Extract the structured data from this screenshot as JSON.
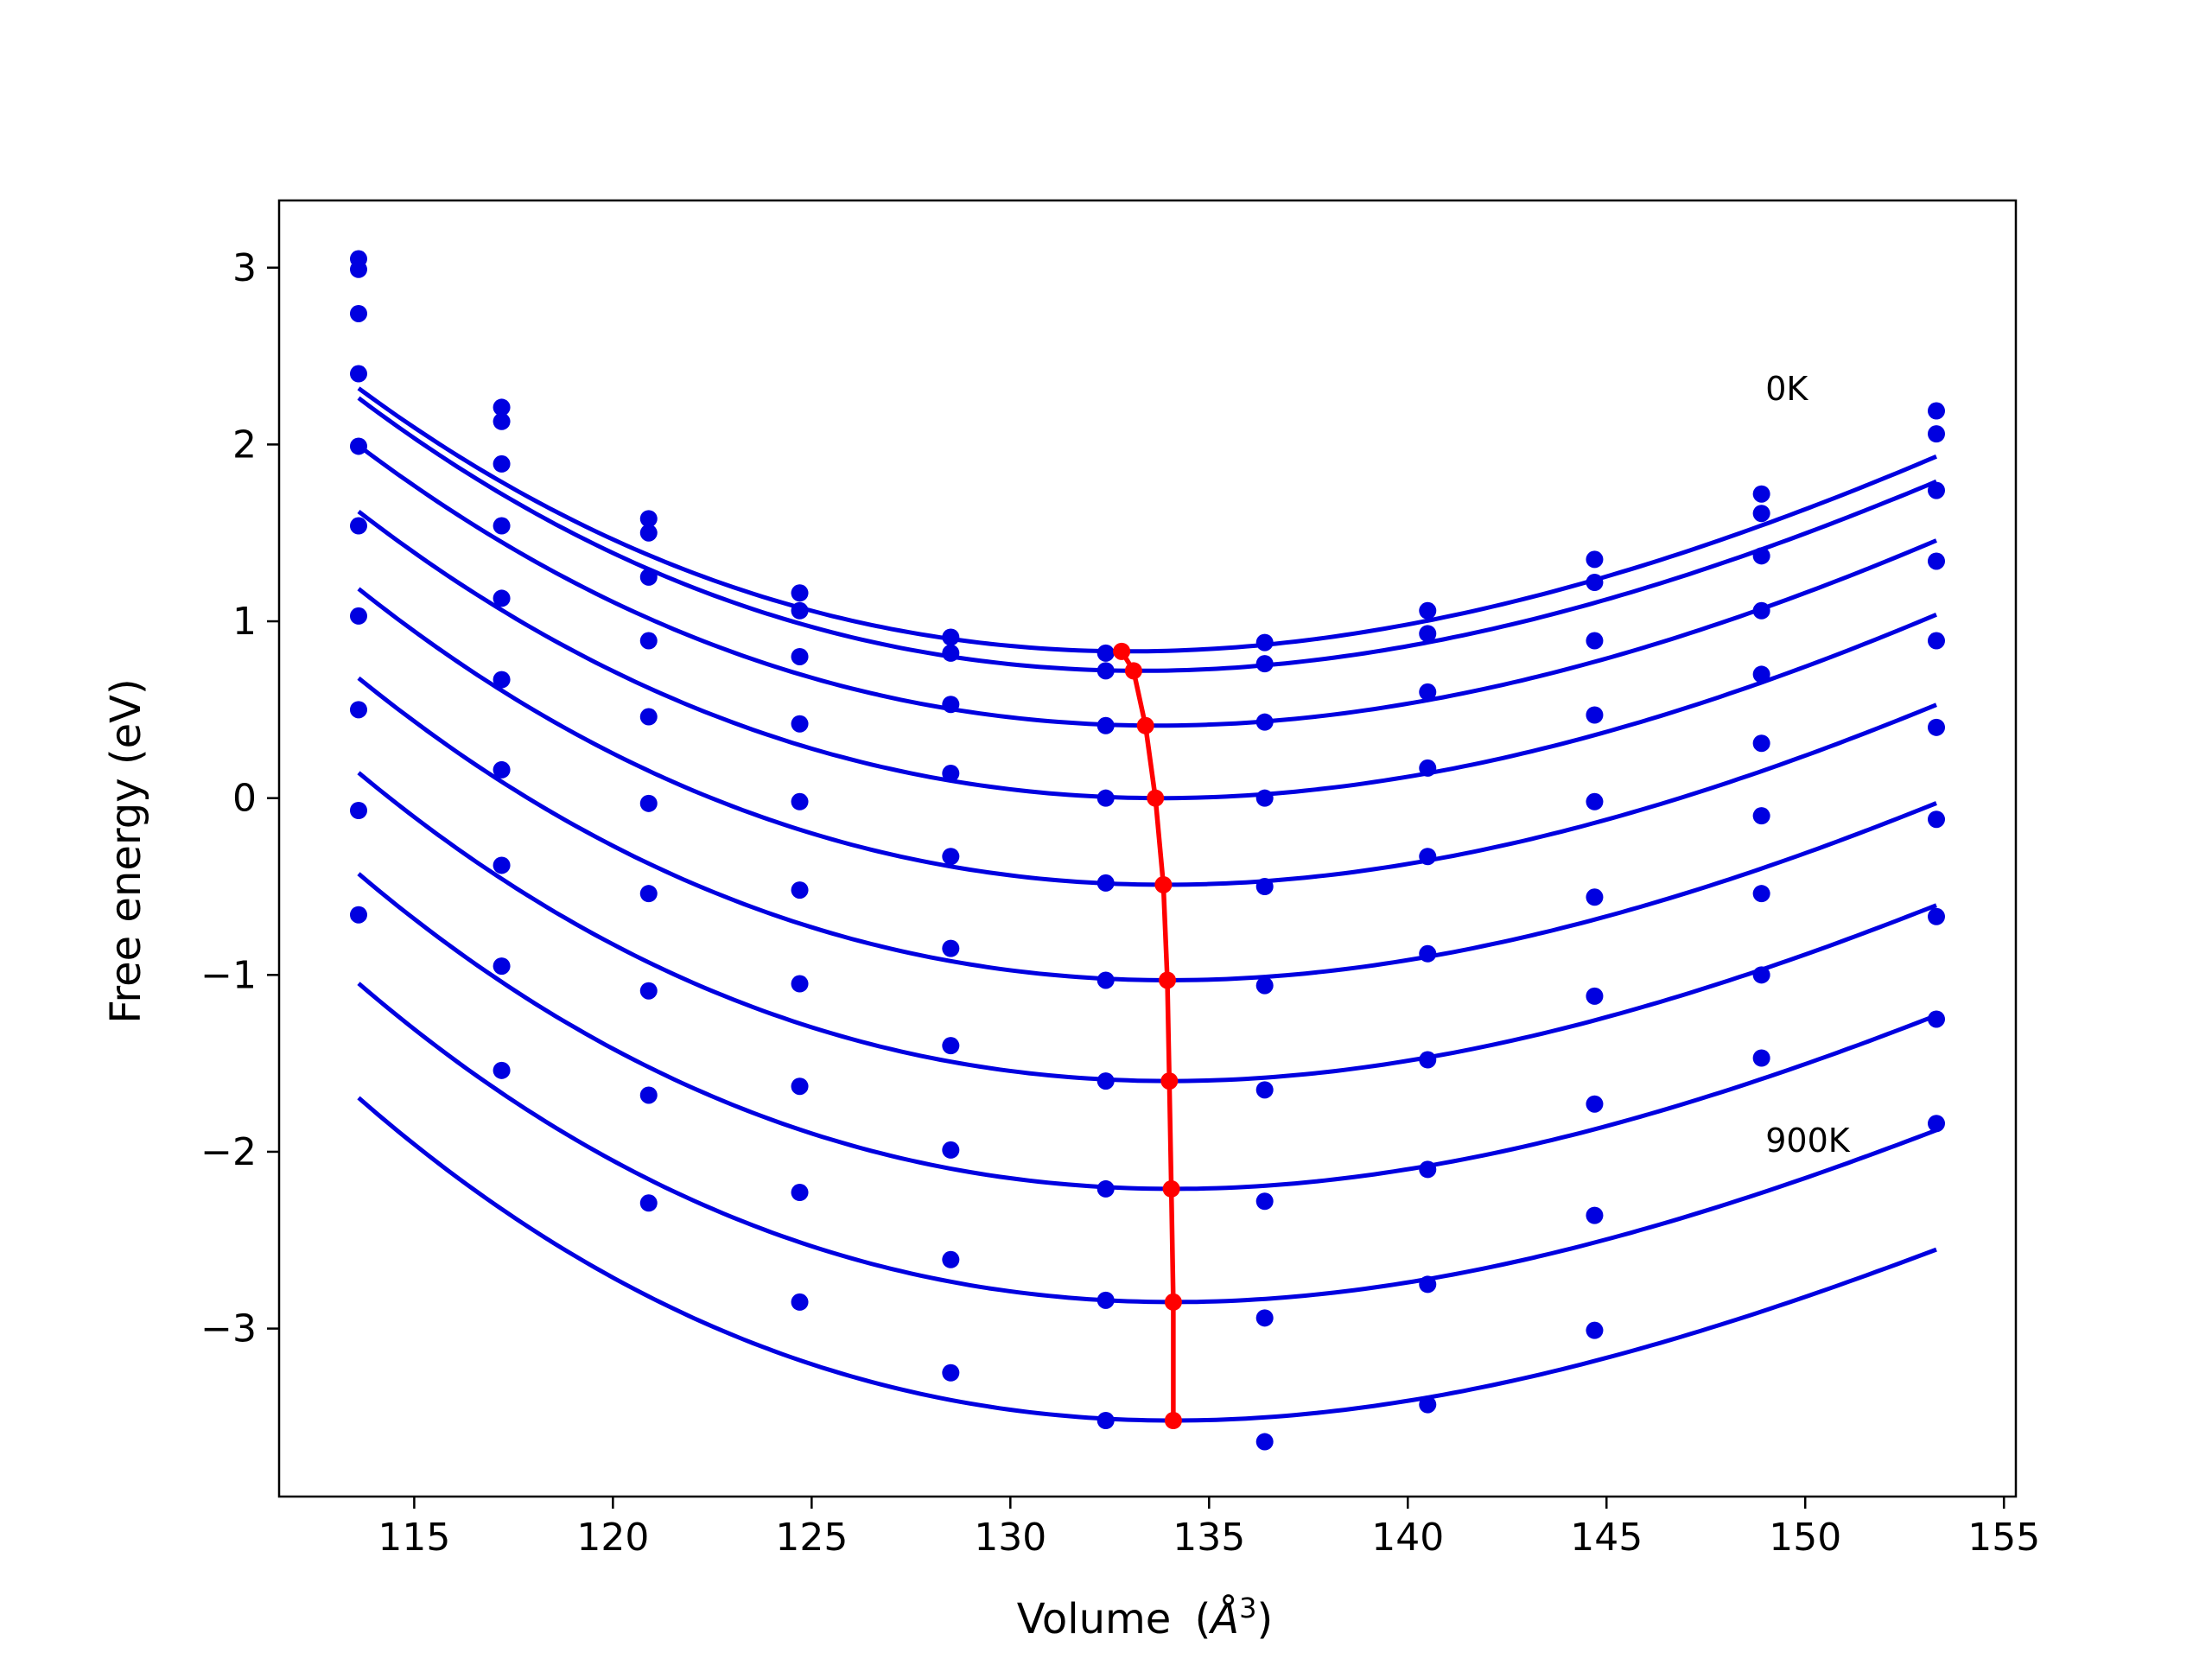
{
  "chart_data": {
    "type": "line",
    "title": "",
    "xlabel": "Volume",
    "xlabel_unit_prefix": "(",
    "xlabel_unit_symbol": "Å",
    "xlabel_unit_exponent": "3",
    "xlabel_unit_suffix": ")",
    "ylabel": "Free energy (eV)",
    "xlim": [
      111.6,
      155.3
    ],
    "ylim": [
      -3.95,
      3.38
    ],
    "xticks": [
      115,
      120,
      125,
      130,
      135,
      140,
      145,
      150,
      155
    ],
    "xtick_labels": [
      "115",
      "120",
      "125",
      "130",
      "135",
      "140",
      "145",
      "150",
      "155"
    ],
    "yticks": [
      3,
      2,
      1,
      0,
      -1,
      -2,
      -3
    ],
    "ytick_labels": [
      "3",
      "2",
      "1",
      "0",
      "−1",
      "−2",
      "−3"
    ],
    "grid": false,
    "legend": "none",
    "colors": {
      "data": "#0000e0",
      "fit": "#0000e0",
      "minima": "#ff0000",
      "frame": "#000000"
    },
    "annotations": [
      {
        "text": "0K",
        "x": 149.0,
        "y": 2.25
      },
      {
        "text": "900K",
        "x": 149.0,
        "y": -2.0
      }
    ],
    "volumes": [
      113.6,
      117.2,
      120.9,
      124.7,
      128.5,
      132.4,
      136.4,
      140.5,
      144.7,
      148.9,
      153.3
    ],
    "series": [
      {
        "values": [
          3.05,
          2.21,
          1.58,
          1.16,
          0.91,
          0.82,
          0.88,
          1.06,
          1.35,
          1.72,
          2.19
        ]
      },
      {
        "values": [
          2.99,
          2.13,
          1.5,
          1.06,
          0.82,
          0.72,
          0.76,
          0.93,
          1.22,
          1.61,
          2.06
        ]
      },
      {
        "values": [
          2.74,
          1.89,
          1.25,
          0.8,
          0.53,
          0.41,
          0.43,
          0.6,
          0.89,
          1.37,
          1.74
        ]
      },
      {
        "values": [
          2.4,
          1.54,
          0.89,
          0.42,
          0.14,
          0.0,
          0.0,
          0.17,
          0.47,
          1.06,
          1.34
        ]
      },
      {
        "values": [
          1.99,
          1.13,
          0.46,
          -0.02,
          -0.33,
          -0.48,
          -0.5,
          -0.33,
          -0.02,
          0.7,
          0.89
        ]
      },
      {
        "values": [
          1.54,
          0.67,
          -0.03,
          -0.52,
          -0.85,
          -1.03,
          -1.06,
          -0.88,
          -0.56,
          0.31,
          0.4
        ]
      },
      {
        "values": [
          1.03,
          0.16,
          -0.54,
          -1.05,
          -1.4,
          -1.6,
          -1.65,
          -1.48,
          -1.12,
          -0.1,
          -0.12
        ]
      },
      {
        "values": [
          0.5,
          -0.38,
          -1.09,
          -1.63,
          -1.99,
          -2.21,
          -2.28,
          -2.1,
          -1.73,
          -0.54,
          -0.67
        ]
      },
      {
        "values": [
          -0.07,
          -0.95,
          -1.68,
          -2.23,
          -2.61,
          -2.84,
          -2.94,
          -2.75,
          -2.36,
          -1.0,
          -1.25
        ]
      },
      {
        "values": [
          -0.66,
          -1.54,
          -2.29,
          -2.85,
          -3.25,
          -3.52,
          -3.64,
          -3.43,
          -3.01,
          -1.47,
          -1.84
        ]
      }
    ],
    "fit_curves": [
      {
        "v0": 133.0,
        "e0": 0.83,
        "a": 0.003328,
        "b": 3.22e-05
      },
      {
        "v0": 133.3,
        "e0": 0.72,
        "a": 0.003331,
        "b": 3.27e-05
      },
      {
        "v0": 133.7,
        "e0": 0.41,
        "a": 0.003316,
        "b": 3.01e-05
      },
      {
        "v0": 133.8,
        "e0": 0.0,
        "a": 0.00334,
        "b": 3.13e-05
      },
      {
        "v0": 133.9,
        "e0": -0.49,
        "a": 0.003368,
        "b": 3.42e-05
      },
      {
        "v0": 134.0,
        "e0": -1.03,
        "a": 0.003378,
        "b": 3.57e-05
      },
      {
        "v0": 134.0,
        "e0": -1.6,
        "a": 0.003408,
        "b": 3.83e-05
      },
      {
        "v0": 134.1,
        "e0": -2.21,
        "a": 0.003425,
        "b": 3.98e-05
      },
      {
        "v0": 134.1,
        "e0": -2.85,
        "a": 0.003436,
        "b": 4.16e-05
      },
      {
        "v0": 134.1,
        "e0": -3.52,
        "a": 0.003455,
        "b": 4.33e-05
      }
    ],
    "minima": {
      "x": [
        132.8,
        133.1,
        133.4,
        133.65,
        133.85,
        133.95,
        134.0,
        134.05,
        134.1,
        134.1
      ],
      "y": [
        0.83,
        0.72,
        0.41,
        0.0,
        -0.49,
        -1.03,
        -1.6,
        -2.21,
        -2.85,
        -3.52
      ]
    }
  }
}
